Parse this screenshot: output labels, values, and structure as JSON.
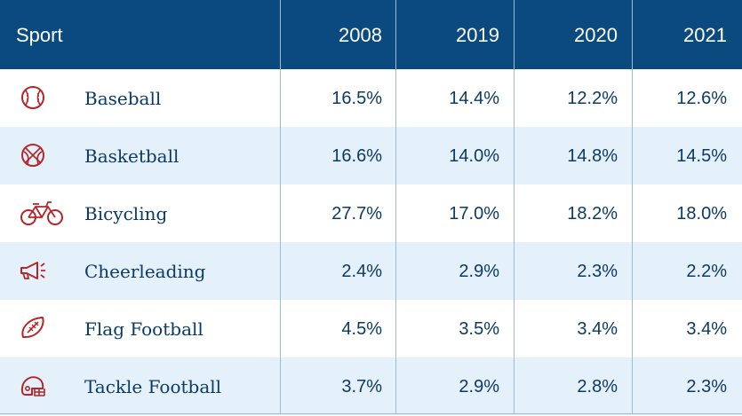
{
  "colors": {
    "header_bg": "#0b4a7e",
    "header_text": "#ffffff",
    "row_alt": "#e5f1fa",
    "body_text": "#0b3a66",
    "icon": "#b5262b"
  },
  "header": {
    "sport": "Sport",
    "years": [
      "2008",
      "2019",
      "2020",
      "2021"
    ]
  },
  "rows": [
    {
      "icon": "baseball-icon",
      "sport": "Baseball",
      "values": [
        "16.5%",
        "14.4%",
        "12.2%",
        "12.6%"
      ]
    },
    {
      "icon": "basketball-icon",
      "sport": "Basketball",
      "values": [
        "16.6%",
        "14.0%",
        "14.8%",
        "14.5%"
      ]
    },
    {
      "icon": "bicycle-icon",
      "sport": "Bicycling",
      "values": [
        "27.7%",
        "17.0%",
        "18.2%",
        "18.0%"
      ]
    },
    {
      "icon": "megaphone-icon",
      "sport": "Cheerleading",
      "values": [
        "2.4%",
        "2.9%",
        "2.3%",
        "2.2%"
      ]
    },
    {
      "icon": "football-icon",
      "sport": "Flag Football",
      "values": [
        "4.5%",
        "3.5%",
        "3.4%",
        "3.4%"
      ]
    },
    {
      "icon": "football-helmet-icon",
      "sport": "Tackle Football",
      "values": [
        "3.7%",
        "2.9%",
        "2.8%",
        "2.3%"
      ]
    }
  ],
  "chart_data": {
    "type": "table",
    "columns": [
      "Sport",
      "2008",
      "2019",
      "2020",
      "2021"
    ],
    "series": [
      {
        "name": "Baseball",
        "values": [
          16.5,
          14.4,
          12.2,
          12.6
        ]
      },
      {
        "name": "Basketball",
        "values": [
          16.6,
          14.0,
          14.8,
          14.5
        ]
      },
      {
        "name": "Bicycling",
        "values": [
          27.7,
          17.0,
          18.2,
          18.0
        ]
      },
      {
        "name": "Cheerleading",
        "values": [
          2.4,
          2.9,
          2.3,
          2.2
        ]
      },
      {
        "name": "Flag Football",
        "values": [
          4.5,
          3.5,
          3.4,
          3.4
        ]
      },
      {
        "name": "Tackle Football",
        "values": [
          3.7,
          2.9,
          2.8,
          2.3
        ]
      }
    ]
  }
}
